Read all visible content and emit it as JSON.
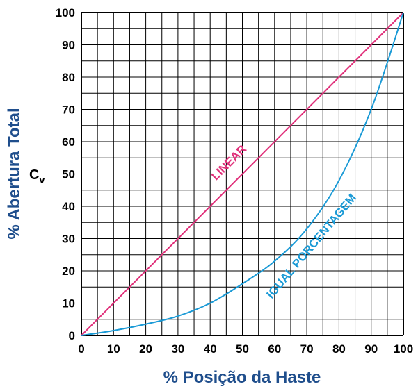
{
  "chart_data": {
    "type": "line",
    "title": "",
    "xlabel": "% Posição da Haste",
    "ylabel": "% Abertura Total",
    "ylabel_secondary": "Cv",
    "xlim": [
      0,
      100
    ],
    "ylim": [
      0,
      100
    ],
    "grid": true,
    "grid_minor_step": 5,
    "x_ticks": [
      "0",
      "10",
      "20",
      "30",
      "40",
      "50",
      "60",
      "70",
      "80",
      "90",
      "100"
    ],
    "y_ticks": [
      "0",
      "10",
      "20",
      "30",
      "40",
      "50",
      "60",
      "70",
      "80",
      "90",
      "100"
    ],
    "series": [
      {
        "name": "LINEAR",
        "color": "#e0307a",
        "x": [
          0,
          100
        ],
        "y": [
          0,
          100
        ]
      },
      {
        "name": "IGUAL PORCENTAGEM",
        "color": "#1a9ad6",
        "x": [
          0,
          10,
          20,
          30,
          40,
          50,
          60,
          70,
          80,
          90,
          100
        ],
        "y": [
          0,
          1.5,
          3.5,
          6,
          10,
          16,
          23,
          33,
          48,
          70,
          100
        ]
      }
    ],
    "colors": {
      "axis_title": "#1f4e8c",
      "grid": "#000000"
    }
  }
}
